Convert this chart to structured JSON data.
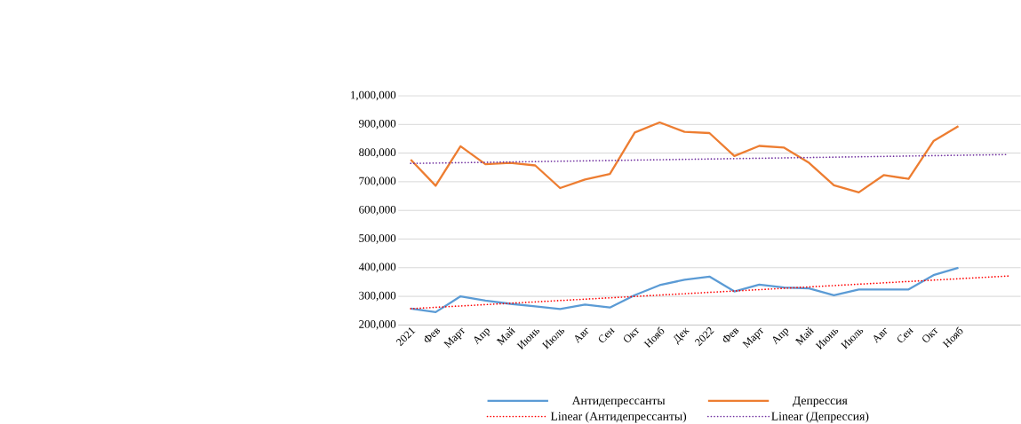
{
  "chart_data": {
    "type": "line",
    "categories": [
      "2021",
      "Фев",
      "Март",
      "Апр",
      "Май",
      "Июнь",
      "Июль",
      "Авг",
      "Сен",
      "Окт",
      "Нояб",
      "Дек",
      "2022",
      "Фев",
      "Март",
      "Апр",
      "Май",
      "Июнь",
      "Июль",
      "Авг",
      "Сен",
      "Окт",
      "Нояб",
      null,
      null
    ],
    "series": [
      {
        "name": "Антидепрессанты",
        "color": "#5b9bd5",
        "line_style": "solid",
        "values": [
          257000,
          245000,
          300000,
          285000,
          274000,
          265000,
          256000,
          271000,
          261000,
          304000,
          339000,
          358000,
          369000,
          317000,
          341000,
          331000,
          328000,
          304000,
          324000,
          324000,
          324000,
          374000,
          400000,
          null,
          null
        ]
      },
      {
        "name": "Депрессия",
        "color": "#ed7d31",
        "line_style": "solid",
        "values": [
          777000,
          686000,
          824000,
          761000,
          766000,
          757000,
          678000,
          708000,
          727000,
          872000,
          907000,
          874000,
          870000,
          790000,
          825000,
          819000,
          766000,
          688000,
          663000,
          723000,
          710000,
          842000,
          894000,
          null,
          null
        ]
      },
      {
        "name": "Linear (Антидепрессанты)",
        "color": "#ff0000",
        "line_style": "dotted",
        "values": [
          257000,
          null,
          null,
          null,
          null,
          null,
          null,
          null,
          null,
          null,
          null,
          null,
          null,
          null,
          null,
          null,
          null,
          null,
          null,
          null,
          null,
          null,
          null,
          null,
          371000
        ]
      },
      {
        "name": "Linear (Депрессия)",
        "color": "#7030a0",
        "line_style": "dotted",
        "values": [
          764000,
          null,
          null,
          null,
          null,
          null,
          null,
          null,
          null,
          null,
          null,
          null,
          null,
          null,
          null,
          null,
          null,
          null,
          null,
          null,
          null,
          null,
          null,
          null,
          795000
        ]
      }
    ],
    "ylim": [
      200000,
      1000000
    ],
    "yticks": [
      {
        "value": 200000,
        "label": "200,000"
      },
      {
        "value": 300000,
        "label": "300,000"
      },
      {
        "value": 400000,
        "label": "400,000"
      },
      {
        "value": 500000,
        "label": "500,000"
      },
      {
        "value": 600000,
        "label": "600,000"
      },
      {
        "value": 700000,
        "label": "700,000"
      },
      {
        "value": 800000,
        "label": "800,000"
      },
      {
        "value": 900000,
        "label": "900,000"
      },
      {
        "value": 1000000,
        "label": "1,000,000"
      }
    ],
    "grid": "y",
    "legend": "bottom"
  }
}
